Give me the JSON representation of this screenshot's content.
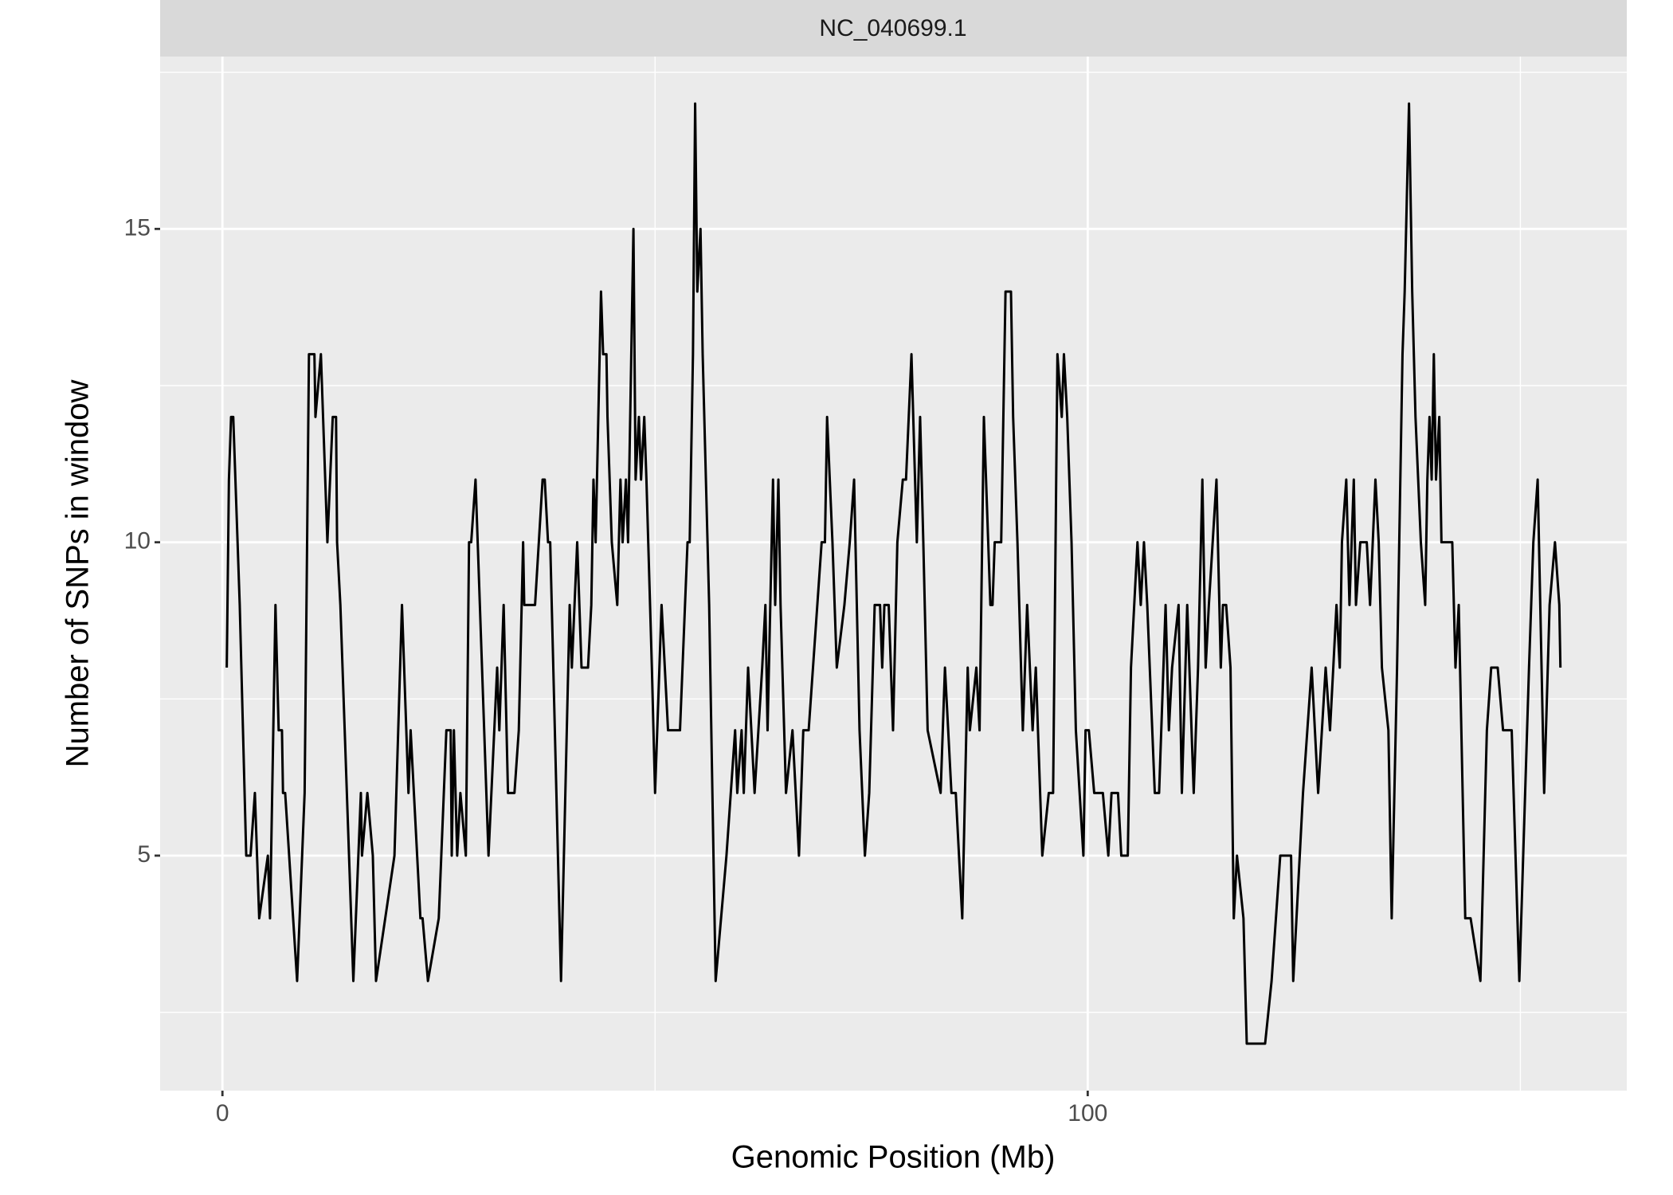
{
  "chart_data": {
    "type": "line",
    "title": "NC_040699.1",
    "x_label": "Genomic Position (Mb)",
    "y_label": "Number of SNPs in window",
    "xlim": [
      -7.2,
      162.3
    ],
    "ylim": [
      1.25,
      17.75
    ],
    "xticks": [
      0,
      100
    ],
    "yticks": [
      5,
      10,
      15
    ],
    "grid": true,
    "color": "#000000",
    "x": [
      0.5,
      0.75,
      1,
      1.25,
      1.5,
      2,
      2.75,
      3.25,
      3.75,
      4.25,
      5.25,
      5.5,
      6.13,
      6.5,
      6.88,
      7,
      7.25,
      8.63,
      9.5,
      10,
      10.63,
      10.75,
      11.38,
      12.13,
      12.75,
      13.13,
      13.25,
      13.63,
      15.13,
      16,
      16.13,
      16.75,
      17.38,
      17.75,
      19.88,
      20.75,
      21.5,
      21.75,
      22.88,
      23.13,
      23.75,
      25,
      25.88,
      26.38,
      26.5,
      26.75,
      27.13,
      27.5,
      28.13,
      28.5,
      28.75,
      29.25,
      29.75,
      30.75,
      31.75,
      32,
      32.5,
      33,
      33.75,
      34.25,
      34.75,
      34.88,
      36.13,
      37,
      37.25,
      37.63,
      37.88,
      39.13,
      40.13,
      40.38,
      41,
      41.5,
      42.25,
      42.63,
      42.88,
      43.13,
      43.75,
      44,
      44.38,
      44.5,
      45,
      45.63,
      46,
      46.25,
      46.63,
      46.88,
      47,
      47.5,
      47.75,
      48.13,
      48.38,
      48.75,
      49,
      49.63,
      50,
      50.75,
      51.5,
      52.88,
      53.75,
      54,
      54.38,
      54.63,
      54.88,
      55.25,
      55.5,
      56.25,
      57,
      58.25,
      59.25,
      59.5,
      60,
      60.25,
      60.75,
      61.5,
      62.38,
      62.75,
      63,
      63.63,
      63.75,
      63.88,
      64.25,
      64.5,
      65.13,
      65.88,
      66.63,
      67.13,
      67.75,
      68.75,
      69.25,
      69.63,
      69.88,
      70.5,
      71,
      71.88,
      72.5,
      73,
      73.63,
      74.25,
      74.75,
      75.38,
      76,
      76.25,
      76.5,
      77,
      77.5,
      78,
      78.63,
      79,
      79.63,
      80.25,
      80.63,
      81,
      81.5,
      83,
      83.5,
      84.25,
      84.75,
      85.5,
      86.13,
      86.38,
      87.13,
      87.5,
      88,
      88.75,
      89,
      89.25,
      90,
      90.5,
      91.13,
      91.38,
      91.88,
      92.5,
      93,
      93.63,
      94,
      94.75,
      95.5,
      96,
      96.5,
      97,
      97.25,
      97.63,
      98.13,
      98.63,
      99.5,
      99.75,
      100.13,
      100.75,
      101.75,
      102.38,
      102.75,
      103.5,
      103.88,
      104.63,
      105,
      105.75,
      106.13,
      106.5,
      106.88,
      107.75,
      108.25,
      109,
      109.38,
      109.75,
      110.5,
      110.88,
      111.5,
      112.25,
      112.75,
      113.25,
      113.63,
      114,
      114.88,
      115.38,
      115.63,
      116,
      116.5,
      116.88,
      117.25,
      118,
      118.38,
      120.5,
      121.25,
      122.25,
      123.5,
      123.75,
      124.88,
      125.88,
      126.63,
      127.5,
      128,
      128.38,
      128.75,
      129.13,
      129.38,
      129.88,
      130.25,
      130.75,
      131,
      131.5,
      132.25,
      132.63,
      133.25,
      133.63,
      134,
      134.75,
      135.13,
      135.75,
      136.38,
      136.63,
      137.13,
      137.5,
      137.88,
      138.5,
      139,
      139.25,
      139.5,
      139.75,
      140,
      140.25,
      140.63,
      140.88,
      142.13,
      142.5,
      142.88,
      143.63,
      144.25,
      145.38,
      146.13,
      146.63,
      147.38,
      148,
      149,
      149.88,
      151,
      151.5,
      152,
      152.75,
      153.38,
      154,
      154.5,
      154.63
    ],
    "values": [
      8,
      11,
      12,
      12,
      11,
      9,
      5,
      5,
      6,
      4,
      5,
      4,
      9,
      7,
      7,
      6,
      6,
      3,
      6,
      13,
      13,
      12,
      13,
      10,
      12,
      12,
      10,
      9,
      3,
      6,
      5,
      6,
      5,
      3,
      5,
      9,
      6,
      7,
      4,
      4,
      3,
      4,
      7,
      7,
      5,
      7,
      5,
      6,
      5,
      10,
      10,
      11,
      9,
      5,
      8,
      7,
      9,
      6,
      6,
      7,
      10,
      9,
      9,
      11,
      11,
      10,
      10,
      3,
      9,
      8,
      10,
      8,
      8,
      9,
      11,
      10,
      14,
      13,
      13,
      12,
      10,
      9,
      11,
      10,
      11,
      10,
      11,
      15,
      11,
      12,
      11,
      12,
      11,
      8,
      6,
      9,
      7,
      7,
      10,
      10,
      13,
      17,
      14,
      15,
      13,
      9,
      3,
      5,
      7,
      6,
      7,
      6,
      8,
      6,
      8,
      9,
      7,
      11,
      10,
      9,
      11,
      9,
      6,
      7,
      5,
      7,
      7,
      9,
      10,
      10,
      12,
      10,
      8,
      9,
      10,
      11,
      7,
      5,
      6,
      9,
      9,
      8,
      9,
      9,
      7,
      10,
      11,
      11,
      13,
      10,
      12,
      10,
      7,
      6,
      8,
      6,
      6,
      4,
      8,
      7,
      8,
      7,
      12,
      9,
      9,
      10,
      10,
      14,
      14,
      12,
      10,
      7,
      9,
      7,
      8,
      5,
      6,
      6,
      13,
      12,
      13,
      12,
      10,
      7,
      5,
      7,
      7,
      6,
      6,
      5,
      6,
      6,
      5,
      5,
      8,
      10,
      9,
      10,
      9,
      6,
      6,
      9,
      7,
      8,
      9,
      6,
      9,
      6,
      8,
      11,
      8,
      9,
      11,
      8,
      9,
      9,
      8,
      4,
      5,
      4,
      2,
      2,
      3,
      5,
      5,
      3,
      6,
      8,
      6,
      8,
      7,
      8,
      9,
      8,
      10,
      11,
      9,
      11,
      9,
      10,
      10,
      9,
      11,
      10,
      8,
      7,
      4,
      8,
      13,
      14,
      17,
      14,
      12,
      10,
      9,
      11,
      12,
      11,
      13,
      11,
      12,
      10,
      10,
      8,
      9,
      4,
      4,
      3,
      7,
      8,
      8,
      7,
      7,
      3,
      8,
      10,
      11,
      6,
      9,
      10,
      9,
      8
    ]
  }
}
